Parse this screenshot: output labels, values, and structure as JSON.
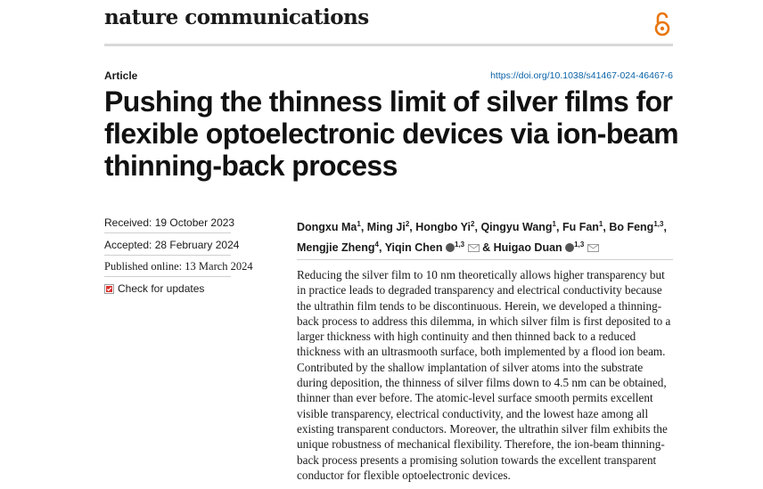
{
  "journal": {
    "name": "nature communications"
  },
  "header": {
    "article_type": "Article",
    "doi": "https://doi.org/10.1038/s41467-024-46467-6"
  },
  "title": "Pushing the thinness limit of silver films for flexible optoelectronic devices via ion-beam thinning-back process",
  "meta": {
    "received": "Received: 19 October 2023",
    "accepted": "Accepted: 28 February 2024",
    "published": "Published online: 13 March 2024",
    "check_updates": "Check for updates"
  },
  "authors": [
    {
      "name": "Dongxu Ma",
      "aff": "1"
    },
    {
      "name": "Ming Ji",
      "aff": "2"
    },
    {
      "name": "Hongbo Yi",
      "aff": "2"
    },
    {
      "name": "Qingyu Wang",
      "aff": "1"
    },
    {
      "name": "Fu Fan",
      "aff": "1"
    },
    {
      "name": "Bo Feng",
      "aff": "1,3"
    },
    {
      "name": "Mengjie Zheng",
      "aff": "4"
    },
    {
      "name": "Yiqin Chen",
      "aff": "1,3"
    },
    {
      "name": "Huigao Duan",
      "aff": "1,3"
    }
  ],
  "abstract": "Reducing the silver film to 10 nm theoretically allows higher transparency but in practice leads to degraded transparency and electrical conductivity because the ultrathin film tends to be discontinuous. Herein, we developed a thinning-back process to address this dilemma, in which silver film is first deposited to a larger thickness with high continuity and then thinned back to a reduced thickness with an ultrasmooth surface, both implemented by a flood ion beam. Contributed by the shallow implantation of silver atoms into the substrate during deposition, the thinness of silver films down to 4.5 nm can be obtained, thinner than ever before. The atomic-level surface smooth permits excellent visible transparency, electrical conductivity, and the lowest haze among all existing transparent conductors. Moreover, the ultrathin silver film exhibits the unique robustness of mechanical flexibility. Therefore, the ion-beam thinning-back process presents a promising solution towards the excellent transparent conductor for flexible optoelectronic devices.",
  "colors": {
    "accent": "#e8760e",
    "link": "#0b63a8"
  },
  "icons": {
    "open_access": "open-access-icon",
    "check": "check-for-updates-icon",
    "orcid": "orcid-icon",
    "email": "email-icon"
  }
}
